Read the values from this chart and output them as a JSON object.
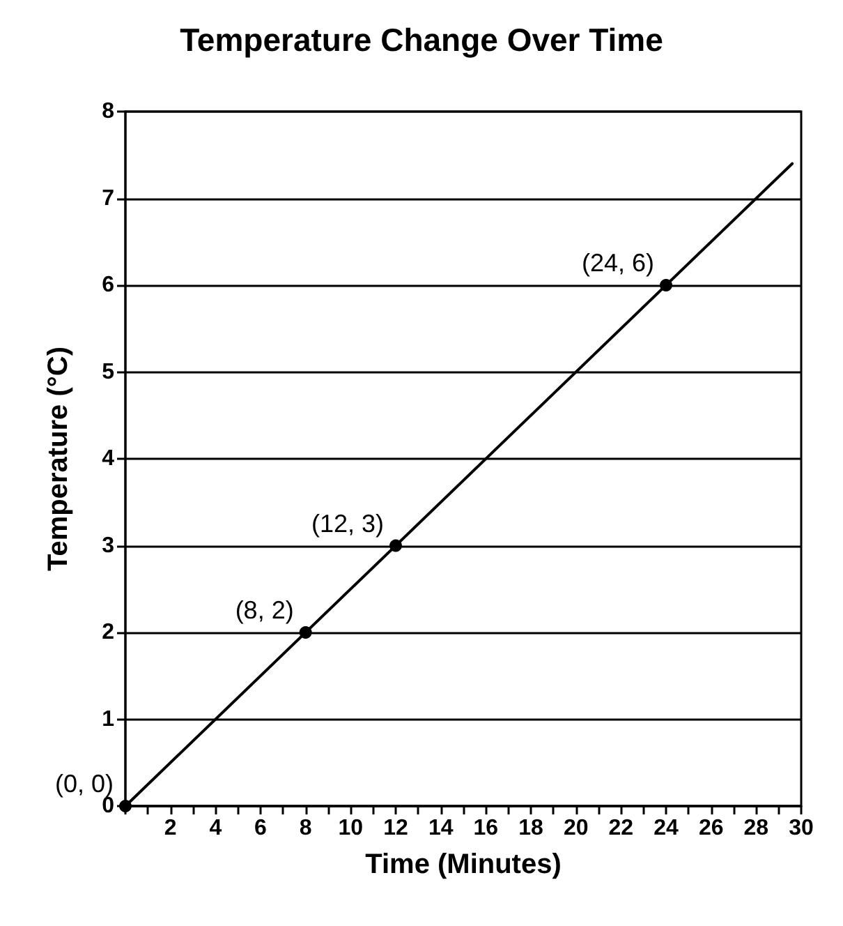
{
  "chart_data": {
    "type": "line",
    "title": "Temperature Change Over Time",
    "xlabel": "Time (Minutes)",
    "ylabel": "Temperature (°C)",
    "xlim": [
      0,
      30
    ],
    "ylim": [
      0,
      8
    ],
    "xticks": [
      {
        "value": 0,
        "label": null
      },
      {
        "value": 1,
        "label": null
      },
      2,
      {
        "value": 3,
        "label": null
      },
      4,
      {
        "value": 5,
        "label": null
      },
      6,
      {
        "value": 7,
        "label": null
      },
      8,
      {
        "value": 9,
        "label": null
      },
      10,
      {
        "value": 11,
        "label": null
      },
      12,
      {
        "value": 13,
        "label": null
      },
      14,
      {
        "value": 15,
        "label": null
      },
      16,
      {
        "value": 17,
        "label": null
      },
      18,
      {
        "value": 19,
        "label": null
      },
      20,
      {
        "value": 21,
        "label": null
      },
      22,
      {
        "value": 23,
        "label": null
      },
      24,
      {
        "value": 25,
        "label": null
      },
      26,
      {
        "value": 27,
        "label": null
      },
      28,
      {
        "value": 29,
        "label": null
      },
      30
    ],
    "yticks": [
      0,
      1,
      2,
      3,
      4,
      5,
      6,
      7,
      8
    ],
    "grid": "y",
    "series": [
      {
        "color": "#000000",
        "marker": "none",
        "x": [
          0,
          29.6
        ],
        "values": [
          0,
          7.4
        ]
      },
      {
        "type": "scatter",
        "color": "#000000",
        "marker": "circle",
        "x": [
          0,
          8,
          12,
          24
        ],
        "values": [
          0,
          2,
          3,
          6
        ],
        "value_labels": [
          "(0, 0)",
          "(8, 2)",
          "(12, 3)",
          "(24, 6)"
        ]
      }
    ]
  }
}
